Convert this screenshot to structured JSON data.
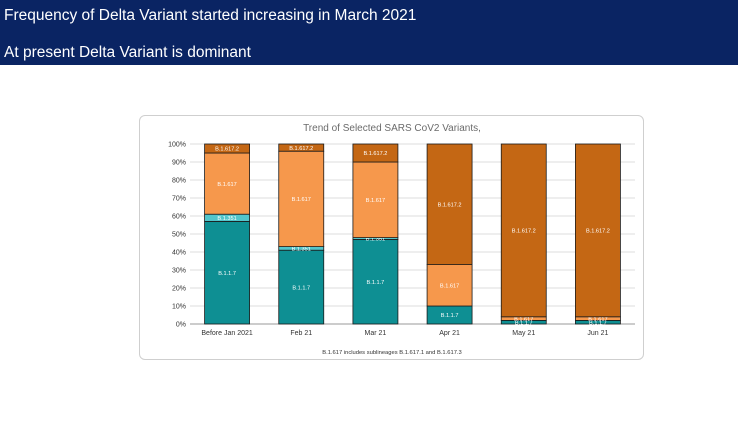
{
  "banner": {
    "line1": "Frequency of Delta Variant started increasing in March 2021",
    "line2": "At present Delta Variant is dominant"
  },
  "colors": {
    "banner_bg": "#0a2463",
    "b117": "#0e8f93",
    "b1351": "#52c5cb",
    "b1617": "#f6984c",
    "b16172": "#c46714"
  },
  "chart_data": {
    "type": "bar",
    "stacked": true,
    "title": "Trend of Selected SARS CoV2 Variants,",
    "footnote": "B.1.617 includes sublineages B.1.617.1 and B.1.617.3",
    "xlabel": "",
    "ylabel": "",
    "ylim": [
      0,
      100
    ],
    "yticks": [
      "0%",
      "10%",
      "20%",
      "30%",
      "40%",
      "50%",
      "60%",
      "70%",
      "80%",
      "90%",
      "100%"
    ],
    "categories": [
      "Before Jan 2021",
      "Feb 21",
      "Mar 21",
      "Apr 21",
      "May 21",
      "Jun 21"
    ],
    "series": [
      {
        "name": "B.1.1.7",
        "labels": [
          "B.1.1.7",
          "B.1.1.7",
          "B.1.1.7",
          "B.1.1.7",
          "B.1.1.7",
          "B.1.1.7"
        ],
        "values": [
          57,
          41,
          47,
          10,
          2,
          2
        ]
      },
      {
        "name": "B.1.351",
        "labels": [
          "B.1.351",
          "B.1.351",
          "B.1.351",
          "",
          "",
          ""
        ],
        "values": [
          4,
          2,
          1,
          0,
          0,
          0
        ]
      },
      {
        "name": "B.1.617",
        "labels": [
          "B.1.617",
          "B.1.617",
          "B.1.617",
          "B.1.617",
          "B.1.617",
          "B.1.617"
        ],
        "values": [
          34,
          53,
          42,
          23,
          2,
          2
        ]
      },
      {
        "name": "B.1.617.2",
        "labels": [
          "B.1.617.2",
          "B.1.617.2",
          "B.1.617.2",
          "B.1.617.2",
          "B.1.617.2",
          "B.1.617.2"
        ],
        "values": [
          5,
          4,
          10,
          67,
          96,
          96
        ]
      }
    ]
  }
}
